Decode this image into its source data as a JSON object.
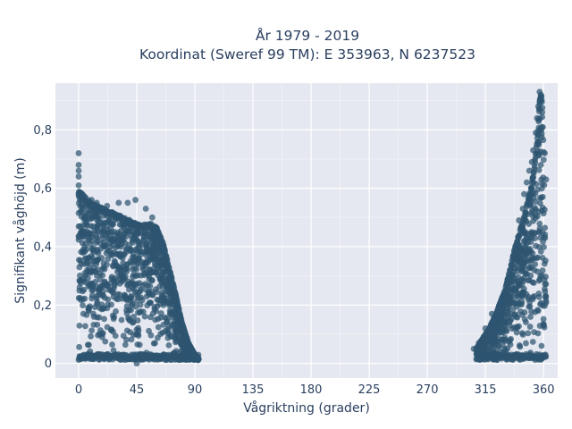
{
  "chart_data": {
    "type": "scatter",
    "title_line1": "År 1979 - 2019",
    "title_line2": "Koordinat (Sweref 99 TM): E 353963, N 6237523",
    "xlabel": "Vågriktning (grader)",
    "ylabel": "Signifikant våghöjd (m)",
    "xlim": [
      -18,
      371
    ],
    "ylim": [
      -0.05,
      0.96
    ],
    "x_ticks": [
      0,
      45,
      90,
      135,
      180,
      225,
      270,
      315,
      360
    ],
    "x_tick_labels": [
      "0",
      "45",
      "90",
      "135",
      "180",
      "225",
      "270",
      "315",
      "360"
    ],
    "y_ticks": [
      0,
      0.2,
      0.4,
      0.6,
      0.8
    ],
    "y_tick_labels": [
      "0",
      "0,2",
      "0,4",
      "0,6",
      "0,8"
    ],
    "grid": true,
    "marker_color": "#2e5570",
    "plot_bg": "#e5e8f0",
    "series": [
      {
        "envelope": [
          [
            0,
            0.6
          ],
          [
            5,
            0.57
          ],
          [
            10,
            0.55
          ],
          [
            15,
            0.54
          ],
          [
            20,
            0.53
          ],
          [
            25,
            0.52
          ],
          [
            30,
            0.51
          ],
          [
            35,
            0.5
          ],
          [
            40,
            0.49
          ],
          [
            45,
            0.48
          ],
          [
            50,
            0.48
          ],
          [
            55,
            0.48
          ],
          [
            60,
            0.47
          ],
          [
            65,
            0.42
          ],
          [
            70,
            0.33
          ],
          [
            75,
            0.24
          ],
          [
            80,
            0.14
          ],
          [
            85,
            0.07
          ],
          [
            90,
            0.03
          ],
          [
            93,
            0.015
          ]
        ],
        "outliers": [
          [
            0,
            0.72
          ],
          [
            0,
            0.68
          ],
          [
            0,
            0.66
          ],
          [
            0,
            0.64
          ],
          [
            0,
            0.61
          ],
          [
            1,
            0.58
          ],
          [
            3,
            0.57
          ],
          [
            10,
            0.56
          ],
          [
            14,
            0.55
          ],
          [
            22,
            0.54
          ],
          [
            31,
            0.55
          ],
          [
            38,
            0.55
          ],
          [
            44,
            0.56
          ],
          [
            52,
            0.53
          ],
          [
            57,
            0.5
          ],
          [
            45,
            0.0
          ]
        ]
      },
      {
        "envelope": [
          [
            308,
            0.05
          ],
          [
            312,
            0.08
          ],
          [
            318,
            0.12
          ],
          [
            324,
            0.18
          ],
          [
            330,
            0.25
          ],
          [
            334,
            0.32
          ],
          [
            338,
            0.4
          ],
          [
            342,
            0.46
          ],
          [
            346,
            0.52
          ],
          [
            350,
            0.6
          ],
          [
            353,
            0.68
          ],
          [
            355,
            0.76
          ],
          [
            356,
            0.82
          ],
          [
            357,
            0.9
          ],
          [
            358,
            0.93
          ],
          [
            359,
            0.9
          ],
          [
            360,
            0.75
          ],
          [
            361,
            0.5
          ],
          [
            362,
            0.25
          ],
          [
            362,
            0.1
          ]
        ],
        "outliers": [
          [
            357,
            0.93
          ],
          [
            358,
            0.92
          ],
          [
            358,
            0.9
          ],
          [
            356,
            0.88
          ],
          [
            359,
            0.86
          ],
          [
            355,
            0.84
          ],
          [
            354,
            0.79
          ],
          [
            352,
            0.73
          ],
          [
            351,
            0.69
          ],
          [
            349,
            0.66
          ],
          [
            347,
            0.62
          ],
          [
            345,
            0.58
          ],
          [
            362,
            0.63
          ],
          [
            361,
            0.72
          ],
          [
            344,
            0.53
          ],
          [
            341,
            0.49
          ],
          [
            320,
            0.17
          ],
          [
            315,
            0.12
          ],
          [
            310,
            0.07
          ],
          [
            306,
            0.05
          ]
        ]
      }
    ]
  }
}
